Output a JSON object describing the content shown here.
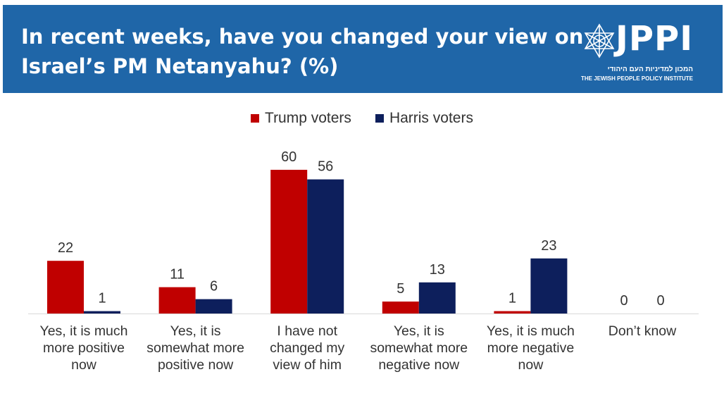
{
  "header": {
    "title_line1": "In recent weeks, have you changed your view on",
    "title_line2": "Israel’s PM Netanyahu?  (%)",
    "logo_text": "JPPI",
    "logo_hebrew": "המכון למדיניות העם היהודי",
    "logo_english": "THE JEWISH PEOPLE POLICY INSTITUTE",
    "background_color": "#1f66a8"
  },
  "chart_data": {
    "type": "bar",
    "categories": [
      [
        "Yes, it is much",
        "more positive",
        "now"
      ],
      [
        "Yes, it is",
        "somewhat more",
        "positive now"
      ],
      [
        "I have not",
        "changed my",
        "view of him"
      ],
      [
        "Yes, it is",
        "somewhat more",
        "negative now"
      ],
      [
        "Yes, it is much",
        "more negative",
        "now"
      ],
      [
        "Don’t know"
      ]
    ],
    "series": [
      {
        "name": "Trump voters",
        "color": "#c00000",
        "values": [
          22,
          11,
          60,
          5,
          1,
          0
        ]
      },
      {
        "name": "Harris voters",
        "color": "#0d1f5c",
        "values": [
          1,
          6,
          56,
          13,
          23,
          0
        ]
      }
    ],
    "ylim": [
      0,
      60
    ],
    "legend": "top-center",
    "grid": false
  }
}
